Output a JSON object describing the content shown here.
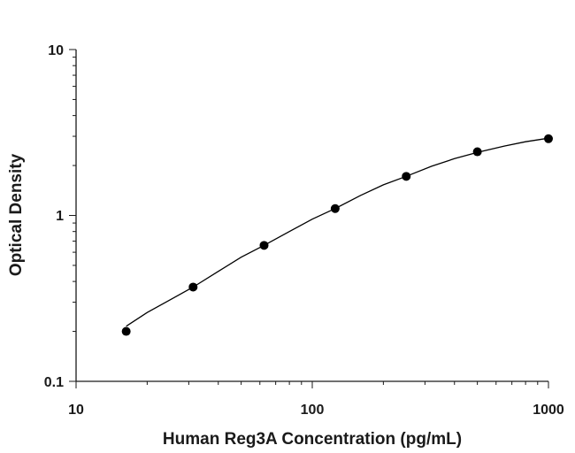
{
  "chart_data": {
    "type": "scatter",
    "title": "",
    "xlabel": "Human Reg3A Concentration (pg/mL)",
    "ylabel": "Optical Density",
    "x_scale": "log",
    "y_scale": "log",
    "xlim": [
      10,
      1000
    ],
    "ylim": [
      0.1,
      10
    ],
    "x_ticks": [
      "10",
      "100",
      "1000"
    ],
    "y_ticks": [
      "0.1",
      "1",
      "10"
    ],
    "grid": false,
    "legend": "none",
    "series": [
      {
        "x": [
          16.3,
          31.3,
          62.5,
          125,
          250,
          500,
          1000
        ],
        "y": [
          0.2,
          0.37,
          0.66,
          1.1,
          1.72,
          2.42,
          2.9
        ]
      }
    ],
    "fit_curve": {
      "x": [
        16.3,
        20,
        25,
        31.3,
        40,
        50,
        62.5,
        80,
        100,
        125,
        160,
        200,
        250,
        320,
        400,
        500,
        650,
        800,
        1000
      ],
      "y": [
        0.215,
        0.26,
        0.31,
        0.37,
        0.46,
        0.56,
        0.66,
        0.8,
        0.95,
        1.1,
        1.32,
        1.53,
        1.72,
        1.98,
        2.2,
        2.4,
        2.62,
        2.78,
        2.92
      ]
    },
    "colors": {
      "axis": "#1a1a1a",
      "marker": "#000000",
      "line": "#000000"
    }
  }
}
